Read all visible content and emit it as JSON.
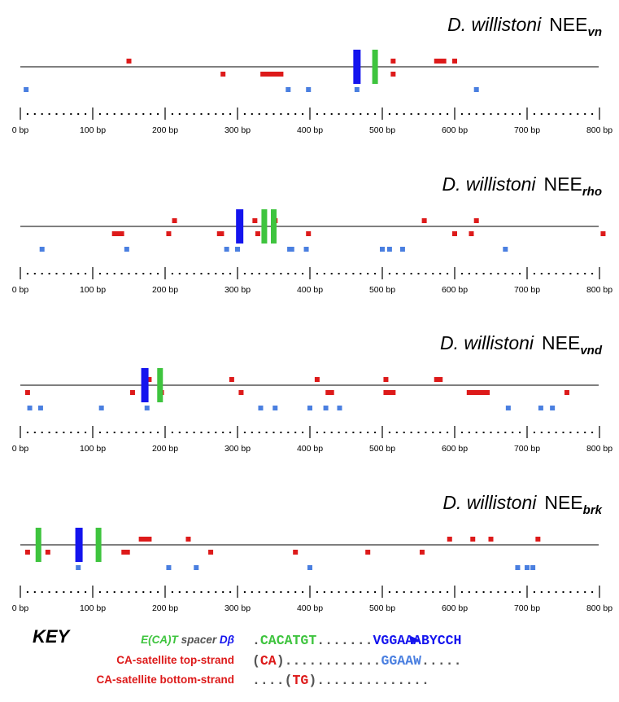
{
  "colors": {
    "top_strand": "#dd1a1a",
    "bottom_strand": "#4a7fe0",
    "dbeta": "#1414ee",
    "eca": "#3ec43e",
    "axis": "#000000",
    "baseline": "#333333",
    "key_gray": "#555555"
  },
  "axis": {
    "min": 0,
    "max": 800,
    "major_step": 100,
    "minor_step": 10,
    "tick_labels": [
      "0 bp",
      "100 bp",
      "200 bp",
      "300 bp",
      "400 bp",
      "500 bp",
      "600 bp",
      "700 bp",
      "800 bp"
    ]
  },
  "panels": [
    {
      "species": "D. willistoni",
      "nee": "NEE",
      "sub": "vn",
      "dbeta_sites": [
        465
      ],
      "eca_sites": [
        490
      ],
      "top_strand_above": [
        150,
        490,
        515,
        575,
        580,
        585,
        600
      ],
      "top_strand_below": [
        280,
        335,
        340,
        345,
        350,
        355,
        360,
        515
      ],
      "bottom_strand": [
        8,
        370,
        398,
        465,
        630
      ]
    },
    {
      "species": "D. willistoni",
      "nee": "NEE",
      "sub": "rho",
      "dbeta_sites": [
        303
      ],
      "eca_sites": [
        337,
        350
      ],
      "top_strand_above": [
        213,
        324,
        352,
        558,
        630
      ],
      "top_strand_below": [
        130,
        135,
        140,
        205,
        275,
        278,
        328,
        398,
        600,
        623,
        805
      ],
      "bottom_strand": [
        30,
        147,
        285,
        300,
        372,
        375,
        395,
        500,
        510,
        528,
        670
      ]
    },
    {
      "species": "D. willistoni",
      "nee": "NEE",
      "sub": "vnd",
      "dbeta_sites": [
        172
      ],
      "eca_sites": [
        193
      ],
      "top_strand_above": [
        178,
        292,
        410,
        505,
        575,
        580
      ],
      "top_strand_below": [
        10,
        155,
        195,
        305,
        425,
        430,
        505,
        510,
        515,
        620,
        625,
        630,
        635,
        640,
        645,
        755
      ],
      "bottom_strand": [
        13,
        28,
        112,
        175,
        332,
        352,
        400,
        422,
        441,
        674,
        719,
        735
      ]
    },
    {
      "species": "D. willistoni",
      "nee": "NEE",
      "sub": "brk",
      "dbeta_sites": [
        81
      ],
      "eca_sites": [
        25,
        108
      ],
      "top_strand_above": [
        167,
        173,
        178,
        232,
        593,
        625,
        650,
        715
      ],
      "top_strand_below": [
        10,
        25,
        38,
        143,
        148,
        263,
        380,
        480,
        555
      ],
      "bottom_strand": [
        80,
        205,
        243,
        400,
        687,
        700,
        708
      ]
    }
  ],
  "key": {
    "title": "KEY",
    "rows": [
      {
        "label_parts": [
          {
            "text": "E(CA)T",
            "color": "#3ec43e",
            "italic": true
          },
          {
            "text": " spacer ",
            "color": "#555555",
            "italic": true
          },
          {
            "text": "Dβ",
            "color": "#1414ee",
            "italic": true
          }
        ],
        "seq_parts": [
          {
            "text": ".",
            "color": "#555555"
          },
          {
            "text": "CACATGT",
            "color": "#3ec43e"
          },
          {
            "text": ".......",
            "color": "#555555"
          },
          {
            "text": "VGGAAABYCCH",
            "color": "#1414ee"
          }
        ],
        "arrow": true
      },
      {
        "label_parts": [
          {
            "text": "CA-satellite top-strand",
            "color": "#dd1a1a",
            "italic": false
          }
        ],
        "seq_parts": [
          {
            "text": "(",
            "color": "#555555"
          },
          {
            "text": "CA",
            "color": "#dd1a1a"
          },
          {
            "text": ")............",
            "color": "#555555"
          },
          {
            "text": "GGAAW",
            "color": "#4a7fe0"
          },
          {
            "text": ".....",
            "color": "#555555"
          }
        ],
        "arrow": false
      },
      {
        "label_parts": [
          {
            "text": "CA-satellite bottom-strand",
            "color": "#dd1a1a",
            "italic": false
          }
        ],
        "seq_parts": [
          {
            "text": "....(",
            "color": "#555555"
          },
          {
            "text": "TG",
            "color": "#dd1a1a"
          },
          {
            "text": ")..............",
            "color": "#555555"
          }
        ],
        "arrow": false
      }
    ]
  }
}
